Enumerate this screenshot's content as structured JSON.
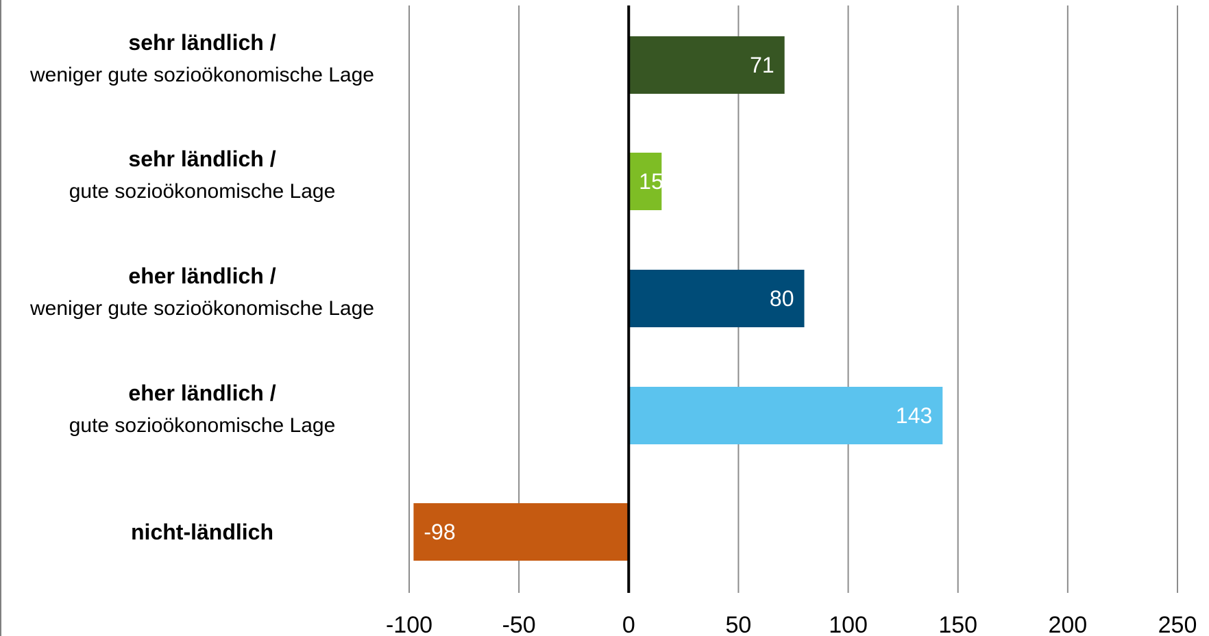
{
  "chart_data": {
    "type": "bar",
    "orientation": "horizontal",
    "categories": [
      {
        "line1": "sehr ländlich /",
        "line2": "weniger gute sozioökonomische Lage"
      },
      {
        "line1": "sehr ländlich /",
        "line2": "gute sozioökonomische Lage"
      },
      {
        "line1": "eher ländlich /",
        "line2": "weniger gute sozioökonomische Lage"
      },
      {
        "line1": "eher ländlich /",
        "line2": "gute sozioökonomische Lage"
      },
      {
        "line1": "nicht-ländlich",
        "line2": ""
      }
    ],
    "values": [
      71,
      15,
      80,
      143,
      -98
    ],
    "data_labels": [
      "71",
      "15",
      "80",
      "143",
      "-98"
    ],
    "colors": [
      "#375623",
      "#7ebd25",
      "#004c78",
      "#5bc3ee",
      "#c55a11"
    ],
    "xlim": [
      -100,
      250
    ],
    "xticks": [
      -100,
      -50,
      0,
      50,
      100,
      150,
      200,
      250
    ],
    "xtick_labels": [
      "-100",
      "-50",
      "0",
      "50",
      "100",
      "150",
      "200",
      "250"
    ],
    "grid": "vertical",
    "legend": "none"
  }
}
